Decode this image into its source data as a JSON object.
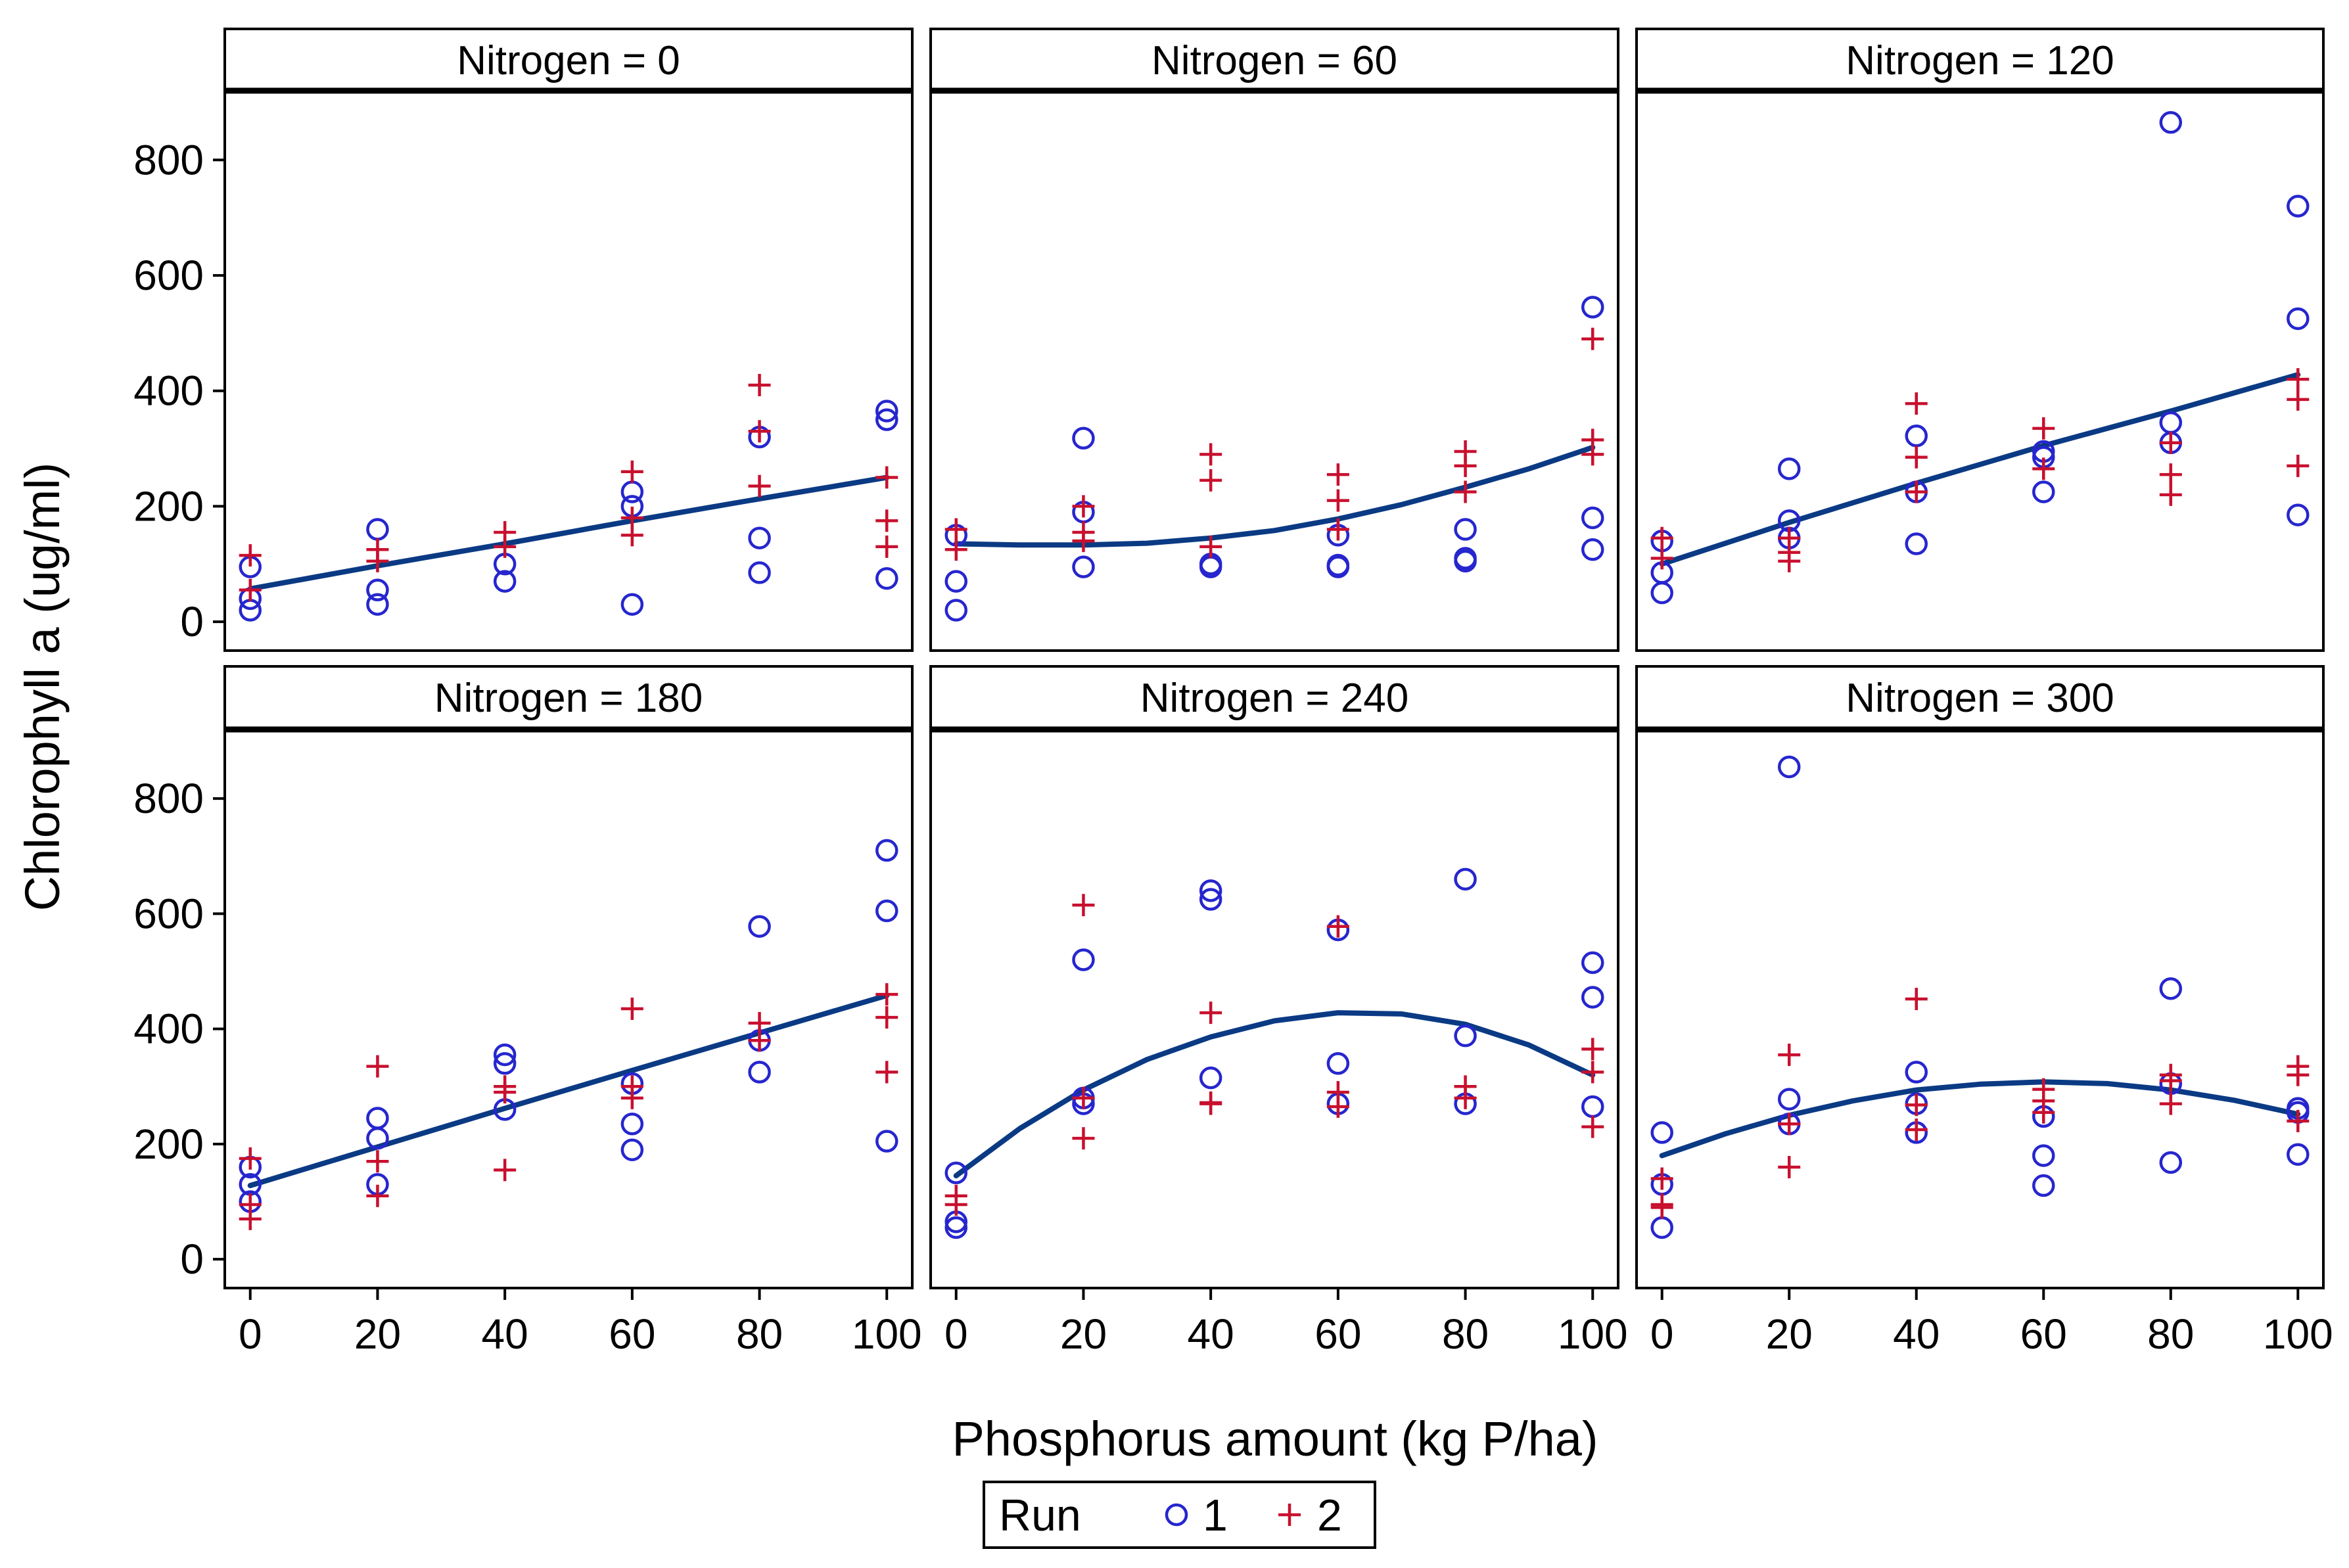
{
  "colors": {
    "run1": "#2626ce",
    "run2": "#c8102e",
    "fit": "#0b3a84",
    "frame": "#000000",
    "background": "#ffffff"
  },
  "chart_data": {
    "type": "scatter",
    "layout": "panel grid 2 rows x 3 columns with fitted curves",
    "xlabel": "Phosphorus amount (kg P/ha)",
    "ylabel": "Chlorophyll a (ug/ml)",
    "xlim": [
      -4,
      104
    ],
    "ylim": [
      -50,
      920
    ],
    "x_ticks": [
      0,
      20,
      40,
      60,
      80,
      100
    ],
    "y_ticks": [
      0,
      200,
      400,
      600,
      800
    ],
    "legend": {
      "title": "Run",
      "position": "bottom-center",
      "entries": [
        {
          "label": "1",
          "marker": "circle"
        },
        {
          "label": "2",
          "marker": "plus"
        }
      ]
    },
    "panels": [
      {
        "title": "Nitrogen = 0",
        "run1": [
          [
            0,
            20
          ],
          [
            0,
            40
          ],
          [
            0,
            95
          ],
          [
            20,
            30
          ],
          [
            20,
            55
          ],
          [
            20,
            160
          ],
          [
            40,
            70
          ],
          [
            40,
            100
          ],
          [
            60,
            30
          ],
          [
            60,
            200
          ],
          [
            60,
            225
          ],
          [
            80,
            85
          ],
          [
            80,
            145
          ],
          [
            80,
            320
          ],
          [
            100,
            75
          ],
          [
            100,
            350
          ],
          [
            100,
            365
          ]
        ],
        "run2": [
          [
            0,
            55
          ],
          [
            0,
            115
          ],
          [
            20,
            105
          ],
          [
            20,
            125
          ],
          [
            40,
            130
          ],
          [
            40,
            155
          ],
          [
            60,
            150
          ],
          [
            60,
            180
          ],
          [
            60,
            260
          ],
          [
            80,
            235
          ],
          [
            80,
            330
          ],
          [
            80,
            410
          ],
          [
            100,
            130
          ],
          [
            100,
            175
          ],
          [
            100,
            250
          ]
        ],
        "fit": [
          [
            0,
            57
          ],
          [
            20,
            97
          ],
          [
            40,
            135
          ],
          [
            60,
            175
          ],
          [
            80,
            213
          ],
          [
            100,
            250
          ]
        ]
      },
      {
        "title": "Nitrogen = 60",
        "run1": [
          [
            0,
            20
          ],
          [
            0,
            70
          ],
          [
            0,
            150
          ],
          [
            20,
            95
          ],
          [
            20,
            190
          ],
          [
            20,
            318
          ],
          [
            40,
            95
          ],
          [
            40,
            100
          ],
          [
            60,
            95
          ],
          [
            60,
            98
          ],
          [
            60,
            150
          ],
          [
            80,
            105
          ],
          [
            80,
            110
          ],
          [
            80,
            160
          ],
          [
            100,
            125
          ],
          [
            100,
            180
          ],
          [
            100,
            545
          ]
        ],
        "run2": [
          [
            0,
            125
          ],
          [
            0,
            160
          ],
          [
            20,
            140
          ],
          [
            20,
            155
          ],
          [
            20,
            200
          ],
          [
            40,
            130
          ],
          [
            40,
            245
          ],
          [
            40,
            290
          ],
          [
            60,
            160
          ],
          [
            60,
            210
          ],
          [
            60,
            255
          ],
          [
            80,
            225
          ],
          [
            80,
            270
          ],
          [
            80,
            295
          ],
          [
            100,
            290
          ],
          [
            100,
            315
          ],
          [
            100,
            490
          ]
        ],
        "fit": [
          [
            0,
            135
          ],
          [
            10,
            133
          ],
          [
            20,
            133
          ],
          [
            30,
            136
          ],
          [
            40,
            145
          ],
          [
            50,
            158
          ],
          [
            60,
            178
          ],
          [
            70,
            203
          ],
          [
            80,
            233
          ],
          [
            90,
            265
          ],
          [
            100,
            302
          ]
        ]
      },
      {
        "title": "Nitrogen = 120",
        "run1": [
          [
            0,
            50
          ],
          [
            0,
            85
          ],
          [
            0,
            140
          ],
          [
            20,
            145
          ],
          [
            20,
            175
          ],
          [
            20,
            265
          ],
          [
            40,
            135
          ],
          [
            40,
            225
          ],
          [
            40,
            322
          ],
          [
            60,
            225
          ],
          [
            60,
            285
          ],
          [
            60,
            295
          ],
          [
            80,
            310
          ],
          [
            80,
            345
          ],
          [
            80,
            865
          ],
          [
            100,
            185
          ],
          [
            100,
            525
          ],
          [
            100,
            720
          ]
        ],
        "run2": [
          [
            0,
            110
          ],
          [
            0,
            145
          ],
          [
            20,
            105
          ],
          [
            20,
            120
          ],
          [
            20,
            145
          ],
          [
            40,
            225
          ],
          [
            40,
            285
          ],
          [
            40,
            378
          ],
          [
            60,
            265
          ],
          [
            60,
            335
          ],
          [
            80,
            220
          ],
          [
            80,
            255
          ],
          [
            80,
            310
          ],
          [
            100,
            270
          ],
          [
            100,
            385
          ],
          [
            100,
            420
          ]
        ],
        "fit": [
          [
            0,
            100
          ],
          [
            20,
            172
          ],
          [
            40,
            240
          ],
          [
            60,
            305
          ],
          [
            80,
            365
          ],
          [
            100,
            428
          ]
        ]
      },
      {
        "title": "Nitrogen = 180",
        "run1": [
          [
            0,
            100
          ],
          [
            0,
            130
          ],
          [
            0,
            160
          ],
          [
            20,
            130
          ],
          [
            20,
            210
          ],
          [
            20,
            245
          ],
          [
            40,
            260
          ],
          [
            40,
            340
          ],
          [
            40,
            355
          ],
          [
            60,
            190
          ],
          [
            60,
            235
          ],
          [
            60,
            305
          ],
          [
            80,
            325
          ],
          [
            80,
            380
          ],
          [
            80,
            578
          ],
          [
            100,
            205
          ],
          [
            100,
            605
          ],
          [
            100,
            710
          ]
        ],
        "run2": [
          [
            0,
            70
          ],
          [
            0,
            95
          ],
          [
            0,
            175
          ],
          [
            20,
            110
          ],
          [
            20,
            170
          ],
          [
            20,
            335
          ],
          [
            40,
            155
          ],
          [
            40,
            290
          ],
          [
            40,
            300
          ],
          [
            60,
            280
          ],
          [
            60,
            300
          ],
          [
            60,
            435
          ],
          [
            80,
            380
          ],
          [
            80,
            410
          ],
          [
            100,
            325
          ],
          [
            100,
            420
          ],
          [
            100,
            460
          ]
        ],
        "fit": [
          [
            0,
            128
          ],
          [
            20,
            195
          ],
          [
            40,
            262
          ],
          [
            60,
            328
          ],
          [
            80,
            393
          ],
          [
            100,
            458
          ]
        ]
      },
      {
        "title": "Nitrogen = 240",
        "run1": [
          [
            0,
            55
          ],
          [
            0,
            65
          ],
          [
            0,
            150
          ],
          [
            20,
            270
          ],
          [
            20,
            280
          ],
          [
            20,
            520
          ],
          [
            40,
            315
          ],
          [
            40,
            625
          ],
          [
            40,
            640
          ],
          [
            60,
            270
          ],
          [
            60,
            340
          ],
          [
            60,
            572
          ],
          [
            80,
            270
          ],
          [
            80,
            388
          ],
          [
            80,
            660
          ],
          [
            100,
            265
          ],
          [
            100,
            455
          ],
          [
            100,
            515
          ]
        ],
        "run2": [
          [
            0,
            95
          ],
          [
            0,
            110
          ],
          [
            20,
            210
          ],
          [
            20,
            280
          ],
          [
            20,
            615
          ],
          [
            40,
            270
          ],
          [
            40,
            272
          ],
          [
            40,
            428
          ],
          [
            60,
            265
          ],
          [
            60,
            290
          ],
          [
            60,
            578
          ],
          [
            80,
            280
          ],
          [
            80,
            300
          ],
          [
            100,
            230
          ],
          [
            100,
            325
          ],
          [
            100,
            365
          ]
        ],
        "fit": [
          [
            0,
            145
          ],
          [
            10,
            227
          ],
          [
            20,
            294
          ],
          [
            30,
            347
          ],
          [
            40,
            386
          ],
          [
            50,
            414
          ],
          [
            60,
            428
          ],
          [
            70,
            426
          ],
          [
            80,
            408
          ],
          [
            90,
            372
          ],
          [
            100,
            320
          ]
        ]
      },
      {
        "title": "Nitrogen = 300",
        "run1": [
          [
            0,
            55
          ],
          [
            0,
            130
          ],
          [
            0,
            220
          ],
          [
            20,
            235
          ],
          [
            20,
            278
          ],
          [
            20,
            855
          ],
          [
            40,
            220
          ],
          [
            40,
            270
          ],
          [
            40,
            325
          ],
          [
            60,
            128
          ],
          [
            60,
            180
          ],
          [
            60,
            248
          ],
          [
            80,
            168
          ],
          [
            80,
            305
          ],
          [
            80,
            470
          ],
          [
            100,
            182
          ],
          [
            100,
            255
          ],
          [
            100,
            262
          ]
        ],
        "run2": [
          [
            0,
            90
          ],
          [
            0,
            95
          ],
          [
            0,
            140
          ],
          [
            20,
            160
          ],
          [
            20,
            235
          ],
          [
            20,
            355
          ],
          [
            40,
            225
          ],
          [
            40,
            268
          ],
          [
            40,
            452
          ],
          [
            60,
            255
          ],
          [
            60,
            275
          ],
          [
            60,
            295
          ],
          [
            80,
            270
          ],
          [
            80,
            310
          ],
          [
            80,
            320
          ],
          [
            100,
            240
          ],
          [
            100,
            320
          ],
          [
            100,
            335
          ]
        ],
        "fit": [
          [
            0,
            180
          ],
          [
            10,
            218
          ],
          [
            20,
            250
          ],
          [
            30,
            275
          ],
          [
            40,
            294
          ],
          [
            50,
            304
          ],
          [
            60,
            308
          ],
          [
            70,
            305
          ],
          [
            80,
            294
          ],
          [
            90,
            276
          ],
          [
            100,
            252
          ]
        ]
      }
    ]
  }
}
